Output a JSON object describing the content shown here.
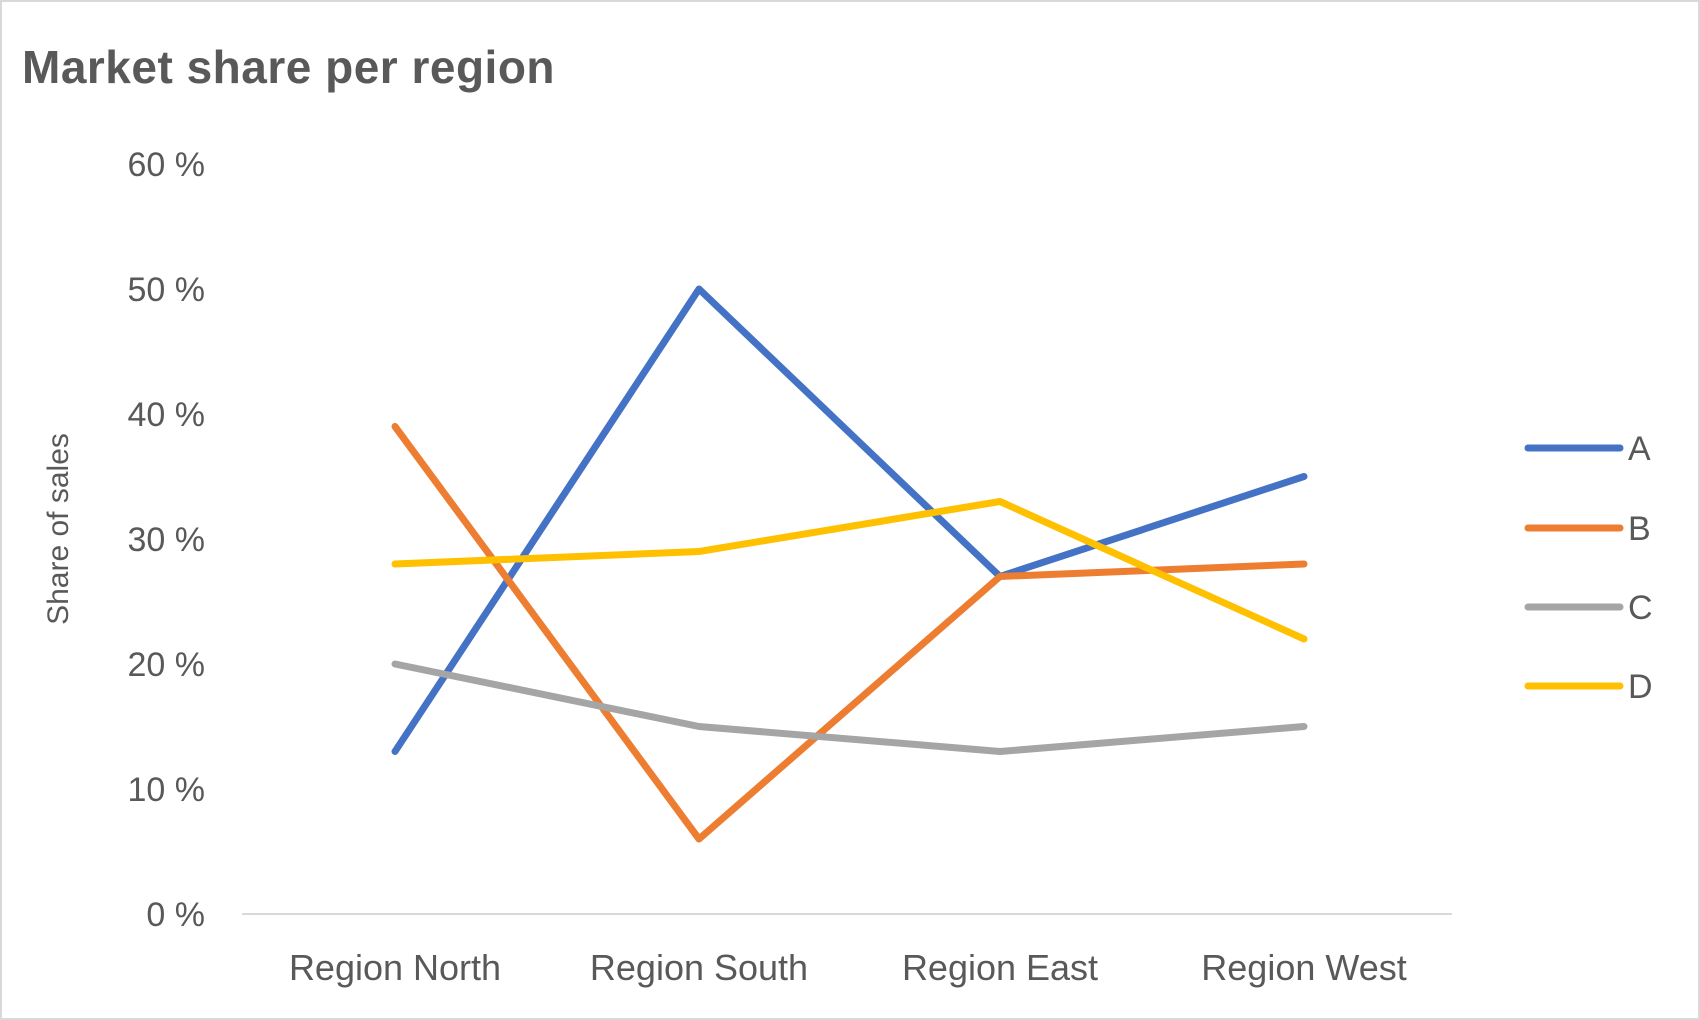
{
  "chart_data": {
    "type": "line",
    "title": "Market share per region",
    "xlabel": "",
    "ylabel": "Share of sales",
    "categories": [
      "Region North",
      "Region South",
      "Region East",
      "Region West"
    ],
    "ylim": [
      0,
      0.6
    ],
    "yticks": [
      0,
      0.1,
      0.2,
      0.3,
      0.4,
      0.5,
      0.6
    ],
    "ytick_labels": [
      "0 %",
      "10 %",
      "20 %",
      "30 %",
      "40 %",
      "50 %",
      "60 %"
    ],
    "grid": false,
    "legend_position": "right",
    "series": [
      {
        "name": "A",
        "color": "#4472C4",
        "values": [
          0.13,
          0.5,
          0.27,
          0.35
        ]
      },
      {
        "name": "B",
        "color": "#ED7D31",
        "values": [
          0.39,
          0.06,
          0.27,
          0.28
        ]
      },
      {
        "name": "C",
        "color": "#A5A5A5",
        "values": [
          0.2,
          0.15,
          0.13,
          0.15
        ]
      },
      {
        "name": "D",
        "color": "#FFC000",
        "values": [
          0.28,
          0.29,
          0.33,
          0.22
        ]
      }
    ]
  }
}
